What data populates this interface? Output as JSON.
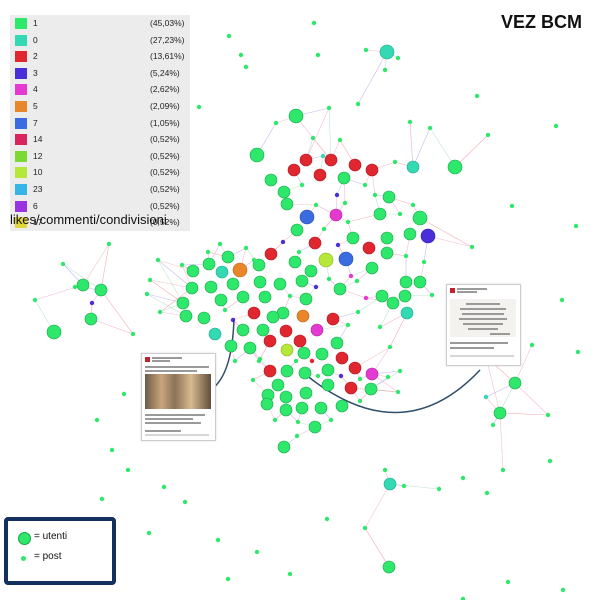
{
  "title": "VEZ BCM",
  "legend": {
    "items": [
      {
        "label": "1",
        "pct": "(45,03%)",
        "color": "#2ee86b"
      },
      {
        "label": "0",
        "pct": "(27,23%)",
        "color": "#33d9b2"
      },
      {
        "label": "2",
        "pct": "(13,61%)",
        "color": "#e0262f"
      },
      {
        "label": "3",
        "pct": "(5,24%)",
        "color": "#4a2fd9"
      },
      {
        "label": "4",
        "pct": "(2,62%)",
        "color": "#e43ad1"
      },
      {
        "label": "5",
        "pct": "(2,09%)",
        "color": "#e8862a"
      },
      {
        "label": "7",
        "pct": "(1,05%)",
        "color": "#3b6be0"
      },
      {
        "label": "14",
        "pct": "(0,52%)",
        "color": "#d9245e"
      },
      {
        "label": "12",
        "pct": "(0,52%)",
        "color": "#7cd934"
      },
      {
        "label": "10",
        "pct": "(0,52%)",
        "color": "#b6e839"
      },
      {
        "label": "23",
        "pct": "(0,52%)",
        "color": "#36b5e6"
      },
      {
        "label": "6",
        "pct": "(0,52%)",
        "color": "#9a34e0"
      },
      {
        "label": "17",
        "pct": "(0,52%)",
        "color": "#e0d53a"
      }
    ],
    "caption": "likes/commenti/condivisioni"
  },
  "key": {
    "users_label": "= utenti",
    "posts_label": "= post",
    "node_color": "#2ee86b",
    "border_color": "#14305f"
  }
}
